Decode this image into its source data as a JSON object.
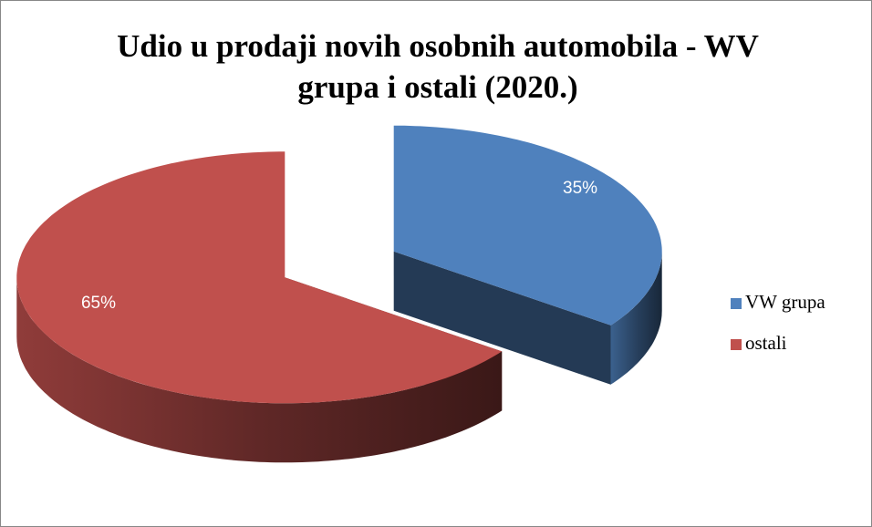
{
  "chart_data": {
    "type": "pie",
    "title": "Udio u prodaji novih osobnih automobila - WV grupa i ostali (2020.)",
    "title_lines": [
      "Udio u prodaji novih osobnih automobila - WV",
      "grupa i ostali (2020.)"
    ],
    "categories": [
      "VW grupa",
      "ostali"
    ],
    "values": [
      35,
      65
    ],
    "value_labels": [
      "35%",
      "65%"
    ],
    "colors": [
      "#4f81bd",
      "#c0504d"
    ],
    "legend": "right"
  }
}
